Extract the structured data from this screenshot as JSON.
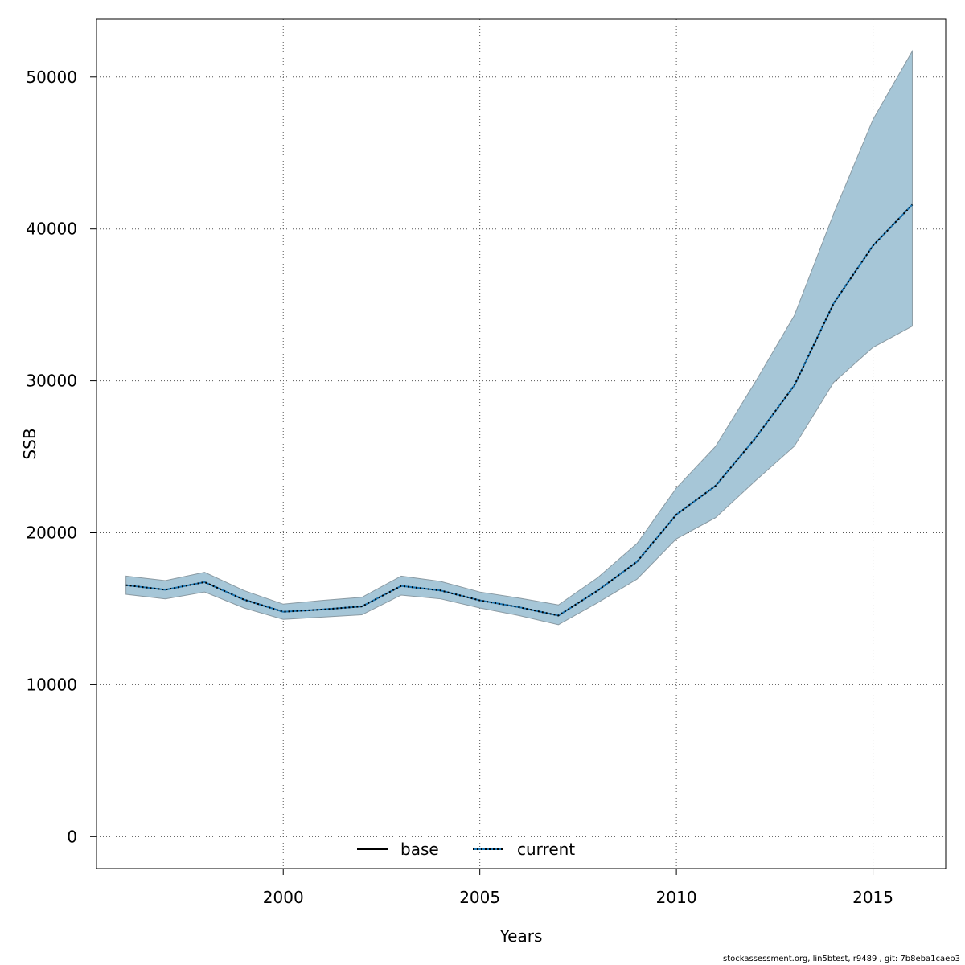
{
  "chart_data": {
    "type": "line",
    "title": "",
    "xlabel": "Years",
    "ylabel": "SSB",
    "xlim": [
      1995.25,
      2016.85
    ],
    "ylim": [
      -2100,
      53800
    ],
    "x_ticks": [
      2000,
      2005,
      2010,
      2015
    ],
    "y_ticks": [
      0,
      10000,
      20000,
      30000,
      40000,
      50000
    ],
    "grid": true,
    "legend_position": "bottom-center",
    "colors": {
      "band": "#a6c6d7",
      "band_edge": "#8a9aa3",
      "base": "#000000",
      "current": "#000000",
      "current_dash_bg": "#1f78b4"
    },
    "x": [
      1996,
      1997,
      1998,
      1999,
      2000,
      2001,
      2002,
      2003,
      2004,
      2005,
      2006,
      2007,
      2008,
      2009,
      2010,
      2011,
      2012,
      2013,
      2014,
      2015,
      2016
    ],
    "series": [
      {
        "name": "base",
        "style": "solid",
        "values": [
          16550,
          16250,
          16750,
          15600,
          14800,
          14950,
          15150,
          16500,
          16200,
          15550,
          15100,
          14550,
          16200,
          18100,
          21200,
          23100,
          26200,
          29700,
          35100,
          38900,
          41600
        ]
      },
      {
        "name": "current",
        "style": "dotted",
        "values": [
          16550,
          16250,
          16750,
          15600,
          14800,
          14950,
          15150,
          16500,
          16200,
          15550,
          15100,
          14550,
          16200,
          18100,
          21200,
          23100,
          26200,
          29700,
          35100,
          38900,
          41600
        ]
      }
    ],
    "band": {
      "lower": [
        15950,
        15650,
        16100,
        15050,
        14300,
        14450,
        14600,
        15900,
        15650,
        15050,
        14550,
        13950,
        15400,
        16950,
        19600,
        21000,
        23400,
        25700,
        29900,
        32200,
        33600
      ],
      "upper": [
        17150,
        16850,
        17400,
        16200,
        15300,
        15550,
        15750,
        17150,
        16800,
        16100,
        15700,
        15250,
        17050,
        19300,
        22950,
        25700,
        29900,
        34300,
        41000,
        47200,
        51700
      ]
    }
  },
  "footer": "stockassessment.org, lin5btest, r9489 , git: 7b8eba1caeb3"
}
